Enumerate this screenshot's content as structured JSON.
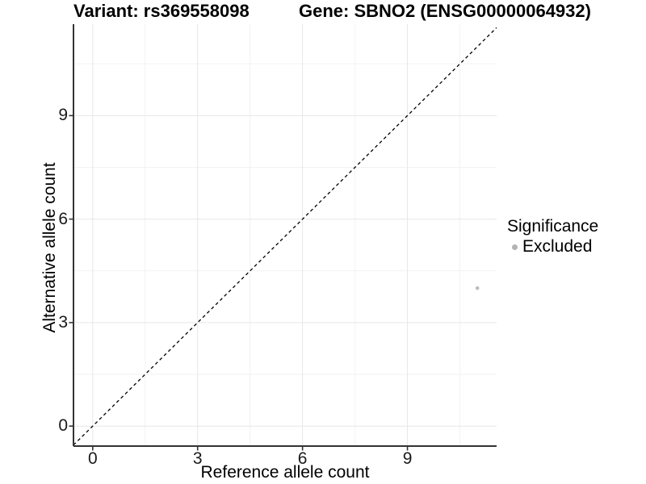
{
  "titles": {
    "variant": "Variant: rs369558098",
    "gene": "Gene: SBNO2 (ENSG00000064932)"
  },
  "chart_data": {
    "type": "scatter",
    "title_left": "Variant: rs369558098",
    "title_right": "Gene: SBNO2 (ENSG00000064932)",
    "xlabel": "Reference allele count",
    "ylabel": "Alternative allele count",
    "x_ticks": [
      0,
      3,
      6,
      9
    ],
    "y_ticks": [
      0,
      3,
      6,
      9
    ],
    "x_minor_ticks": [
      1.5,
      4.5,
      7.5,
      10.5
    ],
    "y_minor_ticks": [
      1.5,
      4.5,
      7.5,
      10.5
    ],
    "xlim": [
      -0.55,
      11.55
    ],
    "ylim": [
      -0.58,
      11.65
    ],
    "grid": true,
    "identity_line": {
      "style": "dashed",
      "slope": 1,
      "intercept": 0,
      "color": "#000000"
    },
    "series": [
      {
        "name": "Excluded",
        "color": "#bcbcbc",
        "points": [
          {
            "x": 11,
            "y": 4
          }
        ]
      }
    ],
    "legend": {
      "title": "Significance",
      "position": "right",
      "items": [
        {
          "label": "Excluded",
          "color": "#b3b3b3"
        }
      ]
    },
    "colors": {
      "major_grid": "#e7e7e7",
      "minor_grid": "#f2f2f2",
      "axis_line": "#333333",
      "tick_mark": "#333333",
      "background": "#ffffff"
    }
  }
}
